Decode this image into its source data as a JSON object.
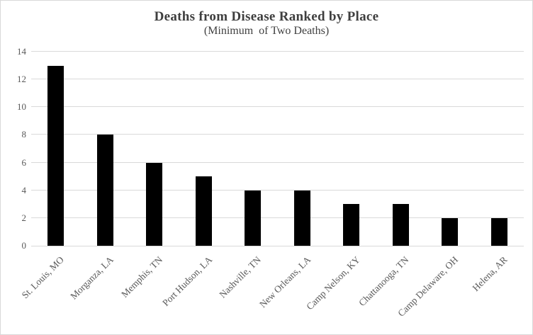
{
  "chart_data": {
    "type": "bar",
    "title": "Deaths from Disease Ranked by Place",
    "subtitle": "(Minimum  of Two Deaths)",
    "categories": [
      "St. Louis, MO",
      "Morganza, LA",
      "Memphis, TN",
      "Port Hudson, LA",
      "Nashville, TN",
      "New Orleans, LA",
      "Camp Nelson, KY",
      "Chattanooga, TN",
      "Camp Delaware, OH",
      "Helena, AR"
    ],
    "values": [
      13,
      8,
      6,
      5,
      4,
      4,
      3,
      3,
      2,
      2
    ],
    "xlabel": "",
    "ylabel": "",
    "ylim": [
      0,
      14
    ],
    "ytick_step": 2,
    "yticks": [
      0,
      2,
      4,
      6,
      8,
      10,
      12,
      14
    ],
    "grid": true,
    "legend": "none",
    "bar_color": "#000000",
    "gridline_color": "#d9d9d9",
    "axis_label_color": "#595959",
    "title_color": "#3f3f3f",
    "background_color": "#ffffff",
    "border_color": "#d9d9d9"
  }
}
